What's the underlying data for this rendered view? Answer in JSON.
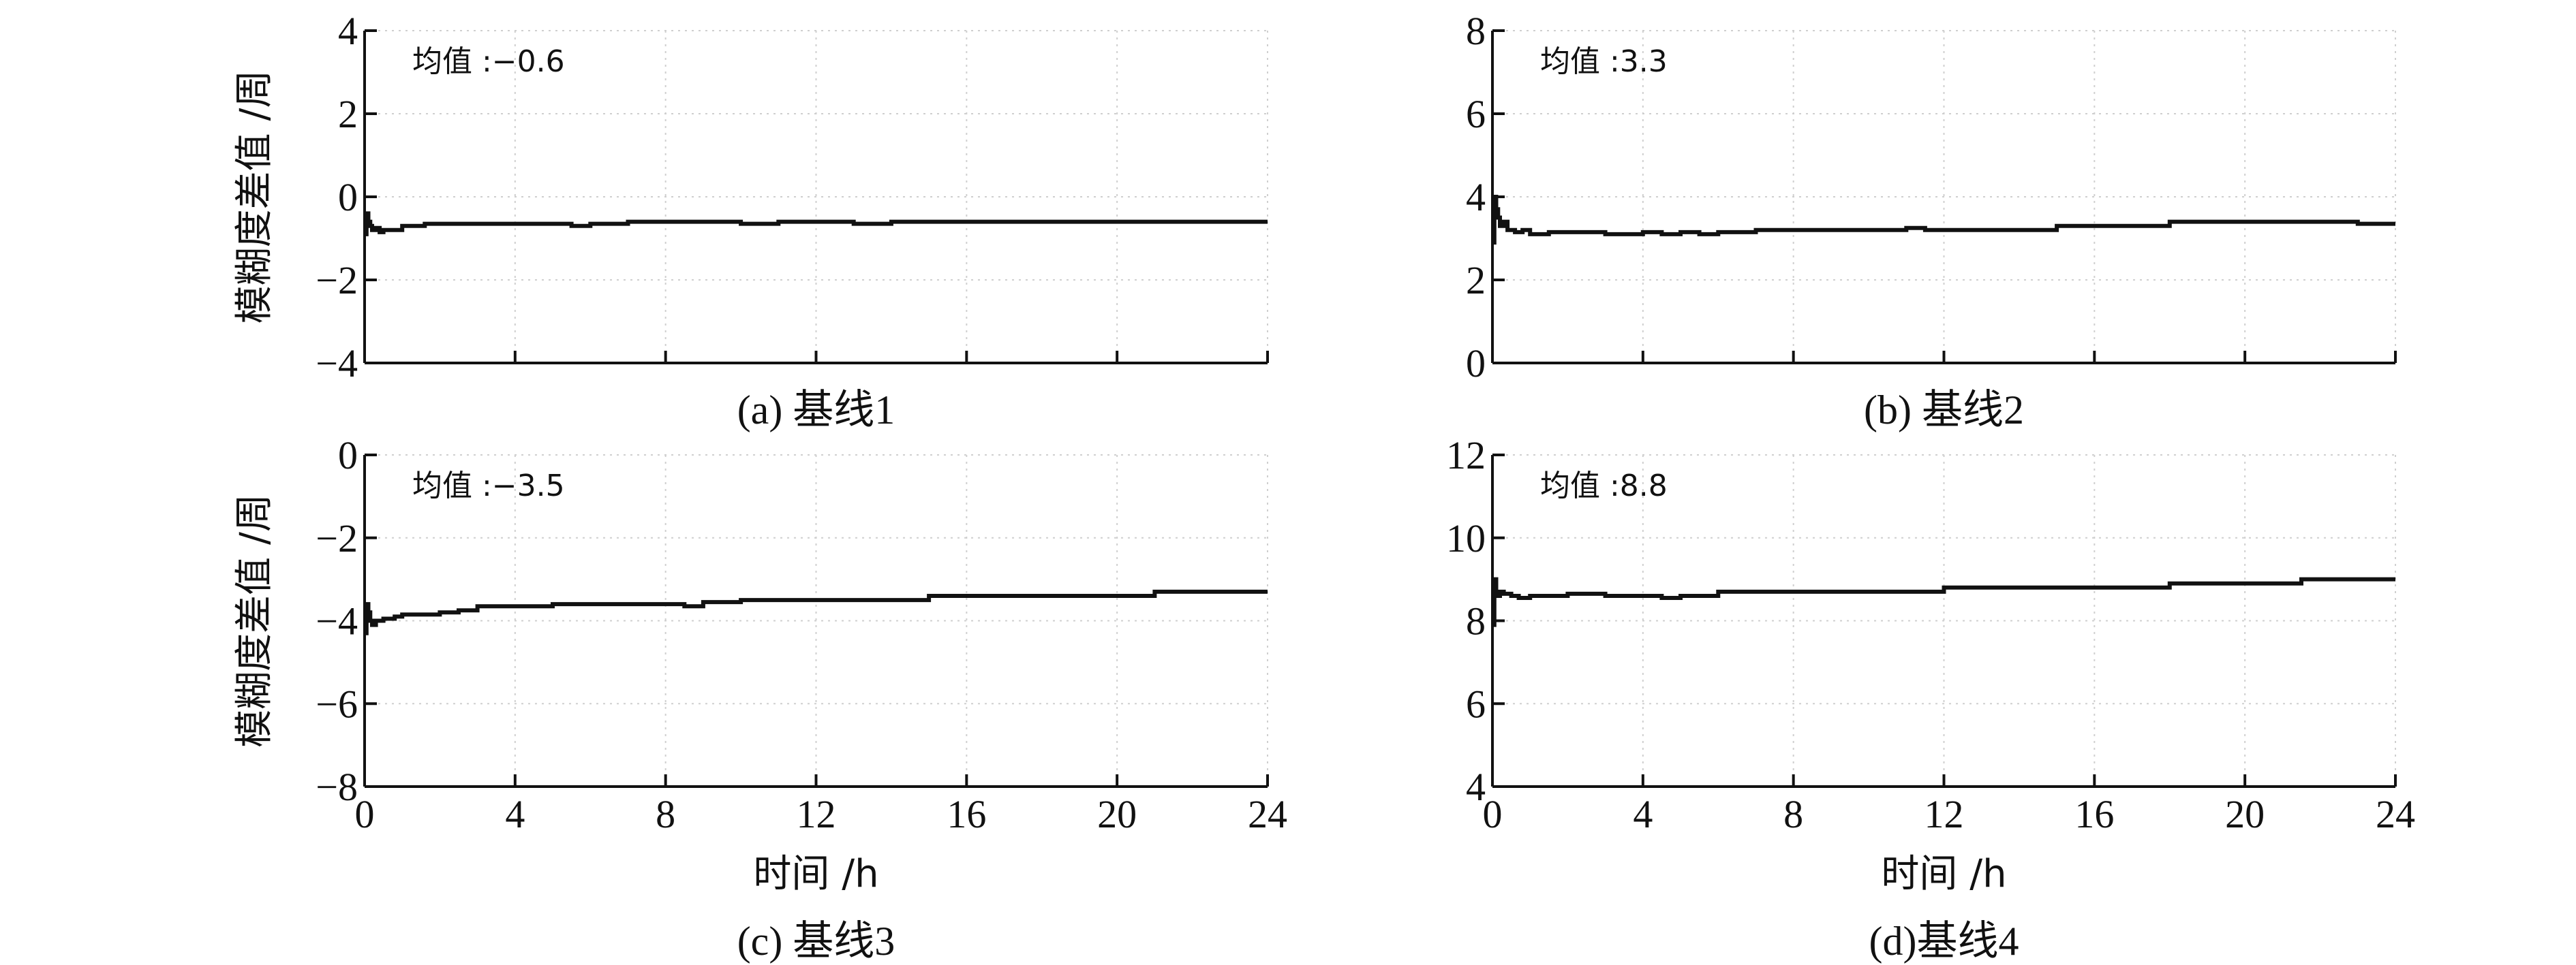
{
  "chart_data": [
    {
      "type": "line",
      "panel": "a",
      "caption": "(a) 基线1",
      "annotation": "均值 :−0.6",
      "ylabel": "模糊度差值 /周",
      "xlabel": "",
      "xlim": [
        0,
        24
      ],
      "ylim": [
        -4,
        4
      ],
      "x_ticks": [
        0,
        4,
        8,
        12,
        16,
        20,
        24
      ],
      "x_tick_labels_shown": false,
      "y_ticks": [
        -4,
        -2,
        0,
        2,
        4
      ],
      "y_tick_labels": [
        "−4",
        "−2",
        "0",
        "2",
        "4"
      ],
      "grid": true,
      "series": [
        {
          "x": [
            0,
            0.05,
            0.1,
            0.15,
            0.2,
            0.3,
            0.4,
            0.5,
            0.7,
            1.0,
            1.3,
            1.6,
            2.0,
            3.0,
            4.0,
            5.0,
            5.5,
            6.0,
            7.0,
            8.0,
            9.0,
            10.0,
            11.0,
            12.0,
            13.0,
            14.0,
            16.0,
            18.0,
            20.0,
            22.0,
            24.0
          ],
          "y": [
            -0.9,
            -0.4,
            -0.6,
            -0.7,
            -0.8,
            -0.75,
            -0.85,
            -0.8,
            -0.8,
            -0.7,
            -0.7,
            -0.65,
            -0.65,
            -0.65,
            -0.65,
            -0.65,
            -0.7,
            -0.65,
            -0.6,
            -0.6,
            -0.6,
            -0.65,
            -0.6,
            -0.6,
            -0.65,
            -0.6,
            -0.6,
            -0.6,
            -0.6,
            -0.6,
            -0.6
          ]
        }
      ]
    },
    {
      "type": "line",
      "panel": "b",
      "caption": "(b) 基线2",
      "annotation": "均值 :3.3",
      "ylabel": "",
      "xlabel": "",
      "xlim": [
        0,
        24
      ],
      "ylim": [
        0,
        8
      ],
      "x_ticks": [
        0,
        4,
        8,
        12,
        16,
        20,
        24
      ],
      "x_tick_labels_shown": false,
      "y_ticks": [
        0,
        2,
        4,
        6,
        8
      ],
      "y_tick_labels": [
        "0",
        "2",
        "4",
        "6",
        "8"
      ],
      "grid": true,
      "series": [
        {
          "x": [
            0,
            0.05,
            0.1,
            0.15,
            0.2,
            0.3,
            0.4,
            0.6,
            0.8,
            1.0,
            1.5,
            2.0,
            3.0,
            4.0,
            4.5,
            5.0,
            5.5,
            6.0,
            7.0,
            8.0,
            10.0,
            11.0,
            11.5,
            12.0,
            14.0,
            15.0,
            16.0,
            17.0,
            18.0,
            20.0,
            22.0,
            23.0,
            24.0
          ],
          "y": [
            2.9,
            4.0,
            3.7,
            3.5,
            3.3,
            3.4,
            3.2,
            3.15,
            3.2,
            3.1,
            3.15,
            3.15,
            3.1,
            3.15,
            3.1,
            3.15,
            3.1,
            3.15,
            3.2,
            3.2,
            3.2,
            3.25,
            3.2,
            3.2,
            3.2,
            3.3,
            3.3,
            3.3,
            3.4,
            3.4,
            3.4,
            3.35,
            3.35
          ]
        }
      ]
    },
    {
      "type": "line",
      "panel": "c",
      "caption": "(c) 基线3",
      "annotation": "均值 :−3.5",
      "ylabel": "模糊度差值 /周",
      "xlabel": "时间 /h",
      "xlim": [
        0,
        24
      ],
      "ylim": [
        -8,
        0
      ],
      "x_ticks": [
        0,
        4,
        8,
        12,
        16,
        20,
        24
      ],
      "x_tick_labels": [
        "0",
        "4",
        "8",
        "12",
        "16",
        "20",
        "24"
      ],
      "y_ticks": [
        -8,
        -6,
        -4,
        -2,
        0
      ],
      "y_tick_labels": [
        "−8",
        "−6",
        "−4",
        "−2",
        "0"
      ],
      "grid": true,
      "series": [
        {
          "x": [
            0,
            0.05,
            0.1,
            0.15,
            0.2,
            0.3,
            0.5,
            0.8,
            1.0,
            1.5,
            2.0,
            2.5,
            3.0,
            4.0,
            5.0,
            6.0,
            7.0,
            8.0,
            8.5,
            9.0,
            10.0,
            12.0,
            14.0,
            15.0,
            16.0,
            18.0,
            20.0,
            21.0,
            22.0,
            24.0
          ],
          "y": [
            -4.3,
            -3.6,
            -3.8,
            -4.0,
            -4.1,
            -4.0,
            -3.95,
            -3.9,
            -3.85,
            -3.85,
            -3.8,
            -3.75,
            -3.65,
            -3.65,
            -3.6,
            -3.6,
            -3.6,
            -3.6,
            -3.65,
            -3.55,
            -3.5,
            -3.5,
            -3.5,
            -3.4,
            -3.4,
            -3.4,
            -3.4,
            -3.3,
            -3.3,
            -3.3
          ]
        }
      ]
    },
    {
      "type": "line",
      "panel": "d",
      "caption": "(d)基线4",
      "annotation": "均值 :8.8",
      "ylabel": "",
      "xlabel": "时间 /h",
      "xlim": [
        0,
        24
      ],
      "ylim": [
        4,
        12
      ],
      "x_ticks": [
        0,
        4,
        8,
        12,
        16,
        20,
        24
      ],
      "x_tick_labels": [
        "0",
        "4",
        "8",
        "12",
        "16",
        "20",
        "24"
      ],
      "y_ticks": [
        4,
        6,
        8,
        10,
        12
      ],
      "y_tick_labels": [
        "4",
        "6",
        "8",
        "10",
        "12"
      ],
      "grid": true,
      "series": [
        {
          "x": [
            0,
            0.05,
            0.1,
            0.15,
            0.2,
            0.3,
            0.5,
            0.7,
            1.0,
            1.5,
            2.0,
            3.0,
            4.0,
            4.5,
            5.0,
            6.0,
            8.0,
            10.0,
            12.0,
            14.0,
            16.0,
            18.0,
            20.0,
            21.5,
            22.0,
            24.0
          ],
          "y": [
            7.9,
            9.0,
            8.7,
            8.6,
            8.7,
            8.65,
            8.6,
            8.55,
            8.6,
            8.6,
            8.65,
            8.6,
            8.6,
            8.55,
            8.6,
            8.7,
            8.7,
            8.7,
            8.8,
            8.8,
            8.8,
            8.9,
            8.9,
            9.0,
            9.0,
            9.0
          ]
        }
      ]
    }
  ]
}
